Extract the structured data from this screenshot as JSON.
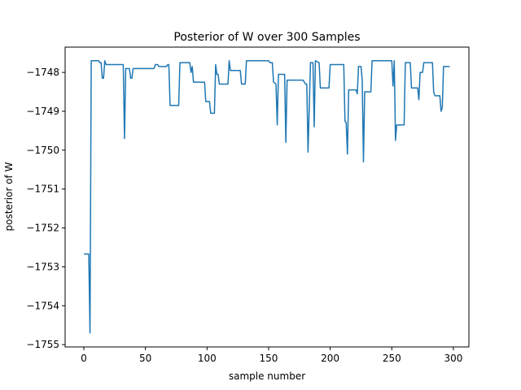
{
  "chart_data": {
    "type": "line",
    "title": "Posterior of W over 300 Samples",
    "xlabel": "sample number",
    "ylabel": "posterior of W",
    "x": [
      0,
      4,
      5,
      6,
      12,
      13,
      14,
      15,
      16,
      17,
      18,
      32,
      33,
      34,
      37,
      38,
      39,
      40,
      57,
      58,
      60,
      61,
      67,
      68,
      69,
      70,
      77,
      78,
      86,
      87,
      88,
      89,
      98,
      99,
      102,
      103,
      106,
      107,
      108,
      109,
      110,
      117,
      118,
      119,
      127,
      128,
      131,
      132,
      150,
      151,
      153,
      154,
      156,
      157,
      158,
      163,
      164,
      165,
      178,
      180,
      181,
      182,
      183,
      184,
      186,
      187,
      188,
      191,
      192,
      199,
      200,
      211,
      212,
      213,
      214,
      215,
      221,
      222,
      223,
      225,
      226,
      227,
      228,
      233,
      234,
      250,
      251,
      252,
      253,
      254,
      260,
      261,
      265,
      266,
      271,
      272,
      273,
      275,
      276,
      283,
      284,
      285,
      289,
      290,
      291,
      292,
      297
    ],
    "series": [
      {
        "name": "posterior",
        "color": "#1f77b4",
        "values": [
          -1752.67,
          -1752.67,
          -1754.7,
          -1747.7,
          -1747.7,
          -1747.75,
          -1747.75,
          -1748.15,
          -1748.15,
          -1747.7,
          -1747.8,
          -1747.8,
          -1749.7,
          -1747.9,
          -1747.9,
          -1748.15,
          -1748.15,
          -1747.9,
          -1747.9,
          -1747.8,
          -1747.8,
          -1747.85,
          -1747.85,
          -1747.8,
          -1747.8,
          -1748.85,
          -1748.85,
          -1747.75,
          -1747.75,
          -1748.0,
          -1747.85,
          -1748.25,
          -1748.25,
          -1748.75,
          -1748.75,
          -1749.05,
          -1749.05,
          -1747.8,
          -1748.05,
          -1748.05,
          -1748.3,
          -1748.3,
          -1747.7,
          -1747.95,
          -1747.95,
          -1748.3,
          -1748.3,
          -1747.7,
          -1747.7,
          -1747.75,
          -1747.75,
          -1748.25,
          -1748.3,
          -1749.35,
          -1748.05,
          -1748.05,
          -1749.8,
          -1748.2,
          -1748.2,
          -1748.3,
          -1748.3,
          -1750.05,
          -1748.9,
          -1747.75,
          -1747.75,
          -1749.4,
          -1747.7,
          -1747.75,
          -1748.4,
          -1748.4,
          -1747.8,
          -1747.8,
          -1749.25,
          -1749.3,
          -1750.1,
          -1748.45,
          -1748.45,
          -1748.55,
          -1747.85,
          -1747.85,
          -1748.2,
          -1750.3,
          -1748.5,
          -1748.5,
          -1747.7,
          -1747.7,
          -1748.35,
          -1747.7,
          -1749.75,
          -1749.35,
          -1749.35,
          -1747.75,
          -1747.75,
          -1748.4,
          -1748.4,
          -1748.7,
          -1748.0,
          -1748.0,
          -1747.75,
          -1747.75,
          -1748.5,
          -1748.6,
          -1748.6,
          -1749.0,
          -1748.9,
          -1747.85,
          -1747.85
        ]
      }
    ],
    "xlim": [
      -15.2,
      312.6
    ],
    "xticks": [
      0,
      50,
      100,
      150,
      200,
      250,
      300
    ],
    "ylim": [
      -1755.06,
      -1747.35
    ],
    "yticks": [
      {
        "value": -1755,
        "label": "−1755"
      },
      {
        "value": -1754,
        "label": "−1754"
      },
      {
        "value": -1753,
        "label": "−1753"
      },
      {
        "value": -1752,
        "label": "−1752"
      },
      {
        "value": -1751,
        "label": "−1751"
      },
      {
        "value": -1750,
        "label": "−1750"
      },
      {
        "value": -1749,
        "label": "−1749"
      },
      {
        "value": -1748,
        "label": "−1748"
      }
    ],
    "grid": false
  }
}
